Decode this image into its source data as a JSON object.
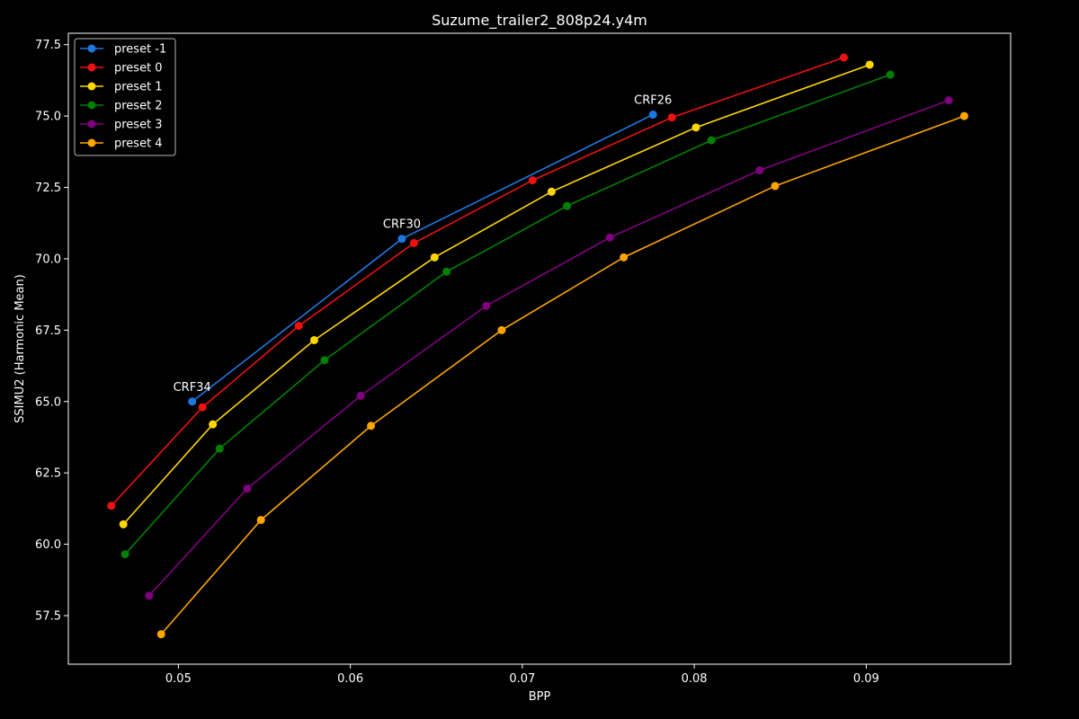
{
  "chart_data": {
    "type": "line",
    "title": "Suzume_trailer2_808p24.y4m",
    "xlabel": "BPP",
    "ylabel": "SSIMU2 (Harmonic Mean)",
    "xlim": [
      0.0436,
      0.0984
    ],
    "ylim": [
      55.8,
      77.9
    ],
    "xticks": [
      0.05,
      0.06,
      0.07,
      0.08,
      0.09
    ],
    "xtick_labels": [
      "0.05",
      "0.06",
      "0.07",
      "0.08",
      "0.09"
    ],
    "yticks": [
      57.5,
      60.0,
      62.5,
      65.0,
      67.5,
      70.0,
      72.5,
      75.0,
      77.5
    ],
    "ytick_labels": [
      "57.5",
      "60.0",
      "62.5",
      "65.0",
      "67.5",
      "70.0",
      "72.5",
      "75.0",
      "77.5"
    ],
    "grid": false,
    "legend_position": "top-left",
    "background_color": "#000000",
    "foreground_color": "#ffffff",
    "series": [
      {
        "name": "preset -1",
        "color": "#1f77e0",
        "x": [
          0.0508,
          0.063,
          0.0776
        ],
        "y": [
          65.0,
          70.7,
          75.05
        ]
      },
      {
        "name": "preset 0",
        "color": "#ee1111",
        "x": [
          0.0461,
          0.0514,
          0.057,
          0.0637,
          0.0706,
          0.0787,
          0.0887
        ],
        "y": [
          61.35,
          64.8,
          67.65,
          70.55,
          72.75,
          74.95,
          77.05
        ]
      },
      {
        "name": "preset 1",
        "color": "#ffd700",
        "x": [
          0.0468,
          0.052,
          0.0579,
          0.0649,
          0.0717,
          0.0801,
          0.0902
        ],
        "y": [
          60.7,
          64.2,
          67.15,
          70.05,
          72.35,
          74.6,
          76.8
        ]
      },
      {
        "name": "preset 2",
        "color": "#008000",
        "x": [
          0.0469,
          0.0524,
          0.0585,
          0.0656,
          0.0726,
          0.081,
          0.0914
        ],
        "y": [
          59.65,
          63.35,
          66.45,
          69.55,
          71.85,
          74.15,
          76.45
        ]
      },
      {
        "name": "preset 3",
        "color": "#800080",
        "x": [
          0.0483,
          0.054,
          0.0606,
          0.0679,
          0.0751,
          0.0838,
          0.0948
        ],
        "y": [
          58.2,
          61.95,
          65.2,
          68.35,
          70.75,
          73.1,
          75.55
        ]
      },
      {
        "name": "preset 4",
        "color": "#ffa500",
        "x": [
          0.049,
          0.0548,
          0.0612,
          0.0688,
          0.0759,
          0.0847,
          0.0957
        ],
        "y": [
          56.85,
          60.85,
          64.15,
          67.5,
          70.05,
          72.55,
          75.0
        ]
      }
    ],
    "annotations": [
      {
        "text": "CRF34",
        "x": 0.0508,
        "y": 65.0
      },
      {
        "text": "CRF30",
        "x": 0.063,
        "y": 70.7
      },
      {
        "text": "CRF26",
        "x": 0.0776,
        "y": 75.05
      }
    ]
  }
}
